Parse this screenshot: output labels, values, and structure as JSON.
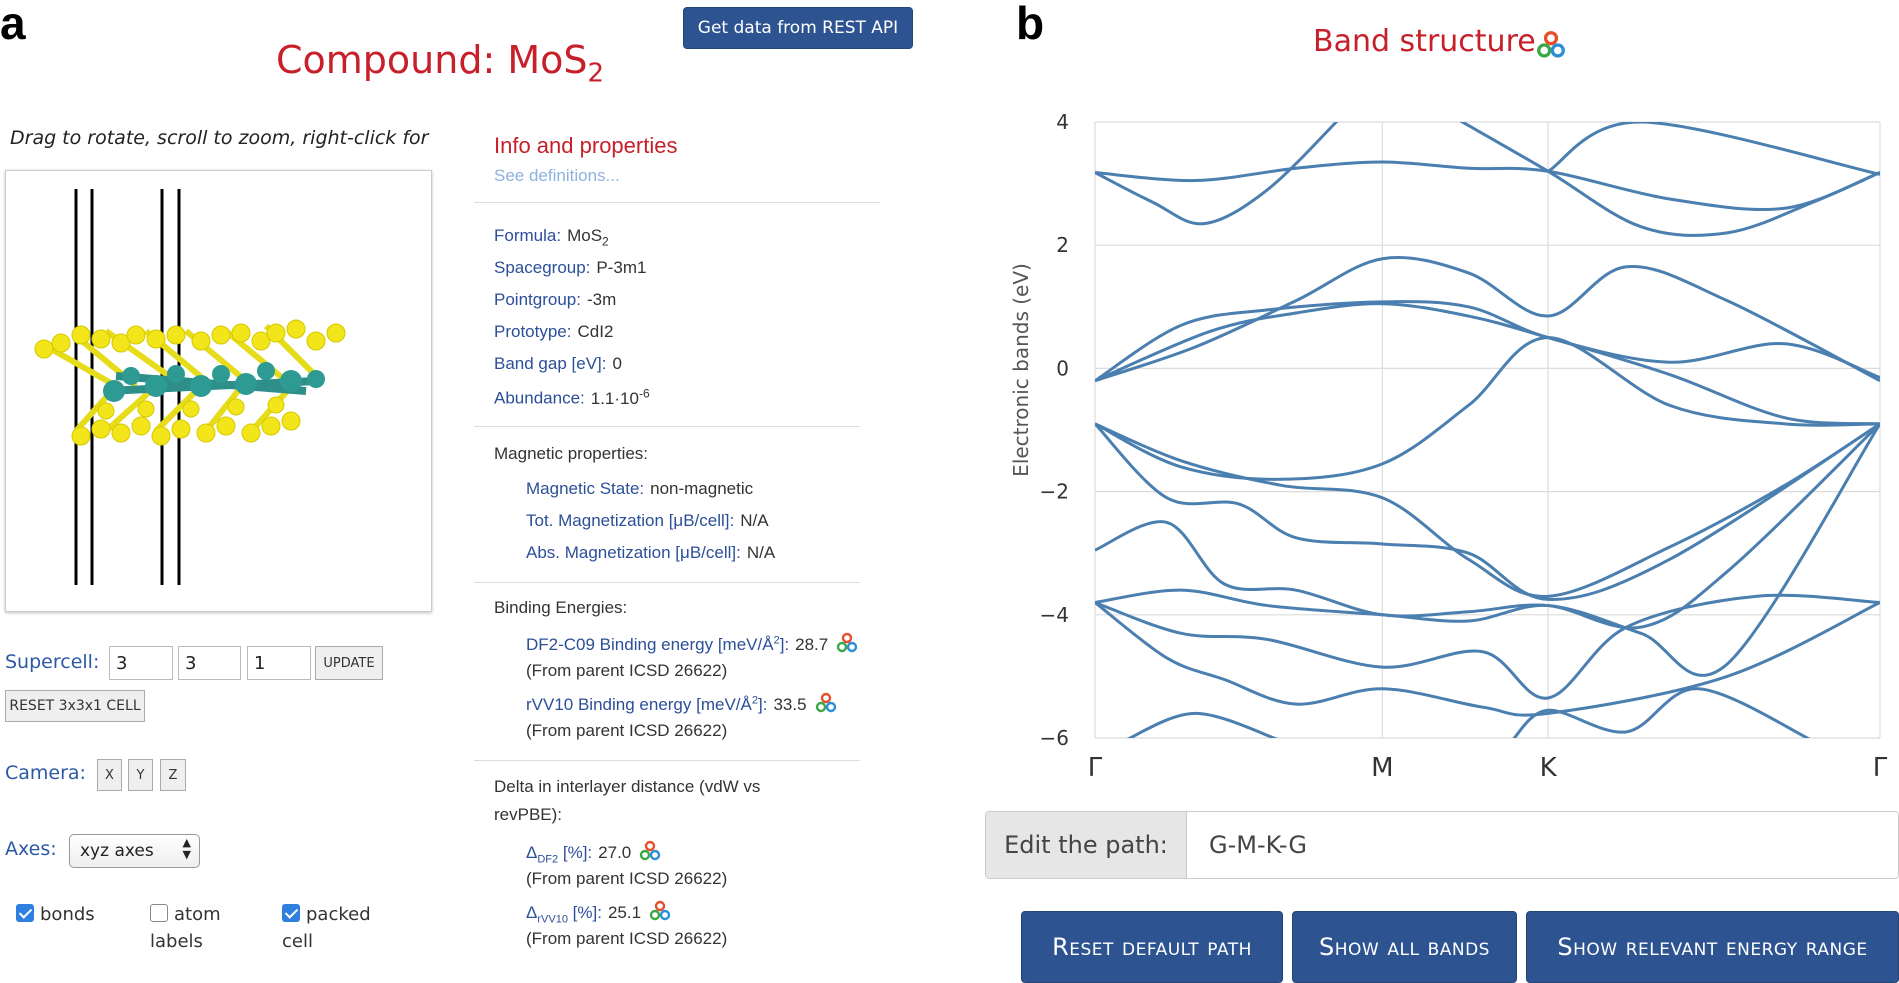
{
  "panels": {
    "left_letter": "a",
    "right_letter": "b"
  },
  "compound": {
    "title_prefix": "Compound: MoS",
    "title_sub": "2"
  },
  "rest_api_button": "Get data from REST API",
  "viewer": {
    "hint": "Drag to rotate, scroll to zoom, right-click for other"
  },
  "supercell": {
    "label": "Supercell:",
    "values": [
      "3",
      "3",
      "1"
    ],
    "update_label": "UPDATE",
    "reset_label": "RESET 3x3x1 CELL"
  },
  "camera": {
    "label": "Camera:",
    "buttons": [
      "X",
      "Y",
      "Z"
    ]
  },
  "axes": {
    "label": "Axes:",
    "selected": "xyz axes"
  },
  "checkboxes": [
    {
      "line1": "bonds",
      "line2": "",
      "checked": true
    },
    {
      "line1": "atom",
      "line2": "labels",
      "checked": false
    },
    {
      "line1": "packed",
      "line2": "cell",
      "checked": true
    }
  ],
  "info": {
    "title": "Info and properties",
    "see_definitions": "See definitions...",
    "formula": {
      "key": "Formula:",
      "value": "MoS",
      "sub": "2"
    },
    "spacegroup": {
      "key": "Spacegroup:",
      "value": "P-3m1"
    },
    "pointgroup": {
      "key": "Pointgroup:",
      "value": "-3m"
    },
    "prototype": {
      "key": "Prototype:",
      "value": "CdI2"
    },
    "band_gap": {
      "key": "Band gap [eV]:",
      "value": "0"
    },
    "abundance": {
      "key": "Abundance:",
      "value": "1.1·10",
      "sup": "-6"
    },
    "magnetic": {
      "heading": "Magnetic properties:",
      "state": {
        "key": "Magnetic State:",
        "value": "non-magnetic"
      },
      "tot": {
        "key": "Tot. Magnetization [μB/cell]:",
        "value": "N/A"
      },
      "abs": {
        "key": "Abs. Magnetization [μB/cell]:",
        "value": "N/A"
      }
    },
    "binding": {
      "heading": "Binding Energies:",
      "df2": {
        "key_pre": "DF2-C09 Binding energy [meV/Å",
        "key_sup": "2",
        "key_post": "]:",
        "value": "28.7",
        "note": "(From parent ICSD 26622)"
      },
      "rvv10": {
        "key_pre": "rVV10 Binding energy [meV/Å",
        "key_sup": "2",
        "key_post": "]:",
        "value": "33.5",
        "note": "(From parent ICSD 26622)"
      }
    },
    "delta": {
      "heading_line1": "Delta in interlayer distance (vdW vs",
      "heading_line2": "revPBE):",
      "df2": {
        "sym": "Δ",
        "sub": "DF2",
        "unit": " [%]:",
        "value": "27.0",
        "note": "(From parent ICSD 26622)"
      },
      "rvv10": {
        "sym": "Δ",
        "sub": "rVV10",
        "unit": " [%]:",
        "value": "25.1",
        "note": "(From parent ICSD 26622)"
      }
    }
  },
  "band": {
    "title": "Band structure",
    "path_label": "Edit the path:",
    "path_value": "G-M-K-G",
    "buttons": {
      "reset": "Reset default path",
      "show_all": "Show all bands",
      "show_relevant": "Show relevant energy range"
    }
  },
  "colors": {
    "accent_red": "#c8202a",
    "link_blue": "#2b4f99",
    "button_blue": "#2d5391",
    "band_line": "#4a7fb0"
  },
  "chart_data": {
    "type": "line",
    "title": "Band structure",
    "xlabel": "",
    "ylabel": "Electronic bands (eV)",
    "ylim": [
      -6,
      4
    ],
    "y_ticks": [
      "4",
      "2",
      "0",
      "−2",
      "−4",
      "−6"
    ],
    "x_ticks": [
      "Γ",
      "M",
      "K",
      "Γ"
    ],
    "k_positions": [
      0,
      1,
      1.577,
      2.732
    ],
    "series": [
      {
        "points": [
          [
            0,
            3.18
          ],
          [
            0.35,
            3.05
          ],
          [
            0.7,
            3.25
          ],
          [
            1,
            3.35
          ],
          [
            1.3,
            3.25
          ],
          [
            1.577,
            3.2
          ],
          [
            2.0,
            2.75
          ],
          [
            2.4,
            2.6
          ],
          [
            2.732,
            3.18
          ]
        ]
      },
      {
        "points": [
          [
            0,
            3.18
          ],
          [
            0.2,
            2.7
          ],
          [
            0.38,
            2.35
          ],
          [
            0.6,
            2.9
          ],
          [
            0.85,
            4.05
          ]
        ]
      },
      {
        "points": [
          [
            1.26,
            4.05
          ],
          [
            1.577,
            3.2
          ],
          [
            1.9,
            2.3
          ],
          [
            2.2,
            2.2
          ],
          [
            2.5,
            2.7
          ],
          [
            2.732,
            3.18
          ]
        ]
      },
      {
        "points": [
          [
            1.577,
            3.2
          ],
          [
            1.9,
            4.0
          ],
          [
            2.732,
            3.15
          ]
        ]
      },
      {
        "points": [
          [
            0,
            -0.2
          ],
          [
            0.35,
            0.35
          ],
          [
            0.7,
            1.1
          ],
          [
            1,
            1.78
          ],
          [
            1.3,
            1.55
          ],
          [
            1.577,
            0.85
          ],
          [
            1.85,
            1.65
          ],
          [
            2.2,
            1.1
          ],
          [
            2.732,
            -0.2
          ]
        ]
      },
      {
        "points": [
          [
            0,
            -0.2
          ],
          [
            0.3,
            0.7
          ],
          [
            0.6,
            0.95
          ],
          [
            1,
            1.08
          ],
          [
            1.3,
            1.0
          ],
          [
            1.577,
            0.5
          ],
          [
            2.0,
            0.1
          ],
          [
            2.4,
            0.4
          ],
          [
            2.732,
            -0.15
          ]
        ]
      },
      {
        "points": [
          [
            0,
            -0.2
          ],
          [
            0.4,
            0.6
          ],
          [
            0.7,
            0.9
          ],
          [
            1,
            1.05
          ],
          [
            1.3,
            0.85
          ],
          [
            1.577,
            0.5
          ],
          [
            2.0,
            -0.1
          ],
          [
            2.4,
            -0.8
          ],
          [
            2.732,
            -0.9
          ]
        ]
      },
      {
        "points": [
          [
            0,
            -0.9
          ],
          [
            0.3,
            -1.6
          ],
          [
            0.65,
            -1.8
          ],
          [
            1,
            -1.55
          ],
          [
            1.3,
            -0.6
          ],
          [
            1.577,
            0.5
          ],
          [
            2.0,
            -0.6
          ],
          [
            2.4,
            -0.9
          ],
          [
            2.732,
            -0.9
          ]
        ]
      },
      {
        "points": [
          [
            0,
            -0.9
          ],
          [
            0.3,
            -1.5
          ],
          [
            0.65,
            -1.9
          ],
          [
            1,
            -2.1
          ],
          [
            1.3,
            -3.1
          ],
          [
            1.577,
            -3.7
          ],
          [
            2.0,
            -2.9
          ],
          [
            2.4,
            -1.9
          ],
          [
            2.732,
            -0.9
          ]
        ]
      },
      {
        "points": [
          [
            0,
            -0.9
          ],
          [
            0.25,
            -2.1
          ],
          [
            0.5,
            -2.2
          ],
          [
            0.7,
            -2.75
          ],
          [
            1,
            -2.85
          ],
          [
            1.3,
            -3.0
          ],
          [
            1.577,
            -3.75
          ],
          [
            2.0,
            -3.1
          ],
          [
            2.732,
            -0.9
          ]
        ]
      },
      {
        "points": [
          [
            0,
            -2.95
          ],
          [
            0.25,
            -2.5
          ],
          [
            0.45,
            -3.5
          ],
          [
            0.7,
            -3.6
          ],
          [
            1,
            -4.0
          ],
          [
            1.3,
            -3.95
          ],
          [
            1.577,
            -3.85
          ],
          [
            1.9,
            -4.2
          ],
          [
            2.2,
            -3.3
          ],
          [
            2.732,
            -0.9
          ]
        ]
      },
      {
        "points": [
          [
            0,
            -3.8
          ],
          [
            0.3,
            -3.6
          ],
          [
            0.6,
            -3.85
          ],
          [
            1,
            -4.0
          ],
          [
            1.3,
            -4.1
          ],
          [
            1.577,
            -3.85
          ],
          [
            1.9,
            -4.3
          ],
          [
            2.2,
            -4.8
          ],
          [
            2.732,
            -0.9
          ]
        ]
      },
      {
        "points": [
          [
            0,
            -3.8
          ],
          [
            0.3,
            -4.3
          ],
          [
            0.6,
            -4.4
          ],
          [
            1,
            -4.85
          ],
          [
            1.35,
            -4.6
          ],
          [
            1.577,
            -5.35
          ],
          [
            1.85,
            -4.2
          ],
          [
            2.3,
            -3.7
          ],
          [
            2.732,
            -3.8
          ]
        ]
      },
      {
        "points": [
          [
            0,
            -3.8
          ],
          [
            0.25,
            -4.7
          ],
          [
            0.45,
            -5.05
          ],
          [
            0.7,
            -5.45
          ],
          [
            1,
            -5.2
          ],
          [
            1.35,
            -5.5
          ],
          [
            1.577,
            -5.6
          ],
          [
            2.2,
            -5.0
          ],
          [
            2.732,
            -3.8
          ]
        ]
      },
      {
        "points": [
          [
            0.1,
            -6.05
          ],
          [
            0.35,
            -5.6
          ],
          [
            0.65,
            -6.05
          ]
        ]
      },
      {
        "points": [
          [
            1.45,
            -6.05
          ],
          [
            1.577,
            -5.55
          ],
          [
            1.85,
            -5.9
          ],
          [
            2.1,
            -5.2
          ],
          [
            2.5,
            -6.05
          ]
        ]
      }
    ]
  }
}
